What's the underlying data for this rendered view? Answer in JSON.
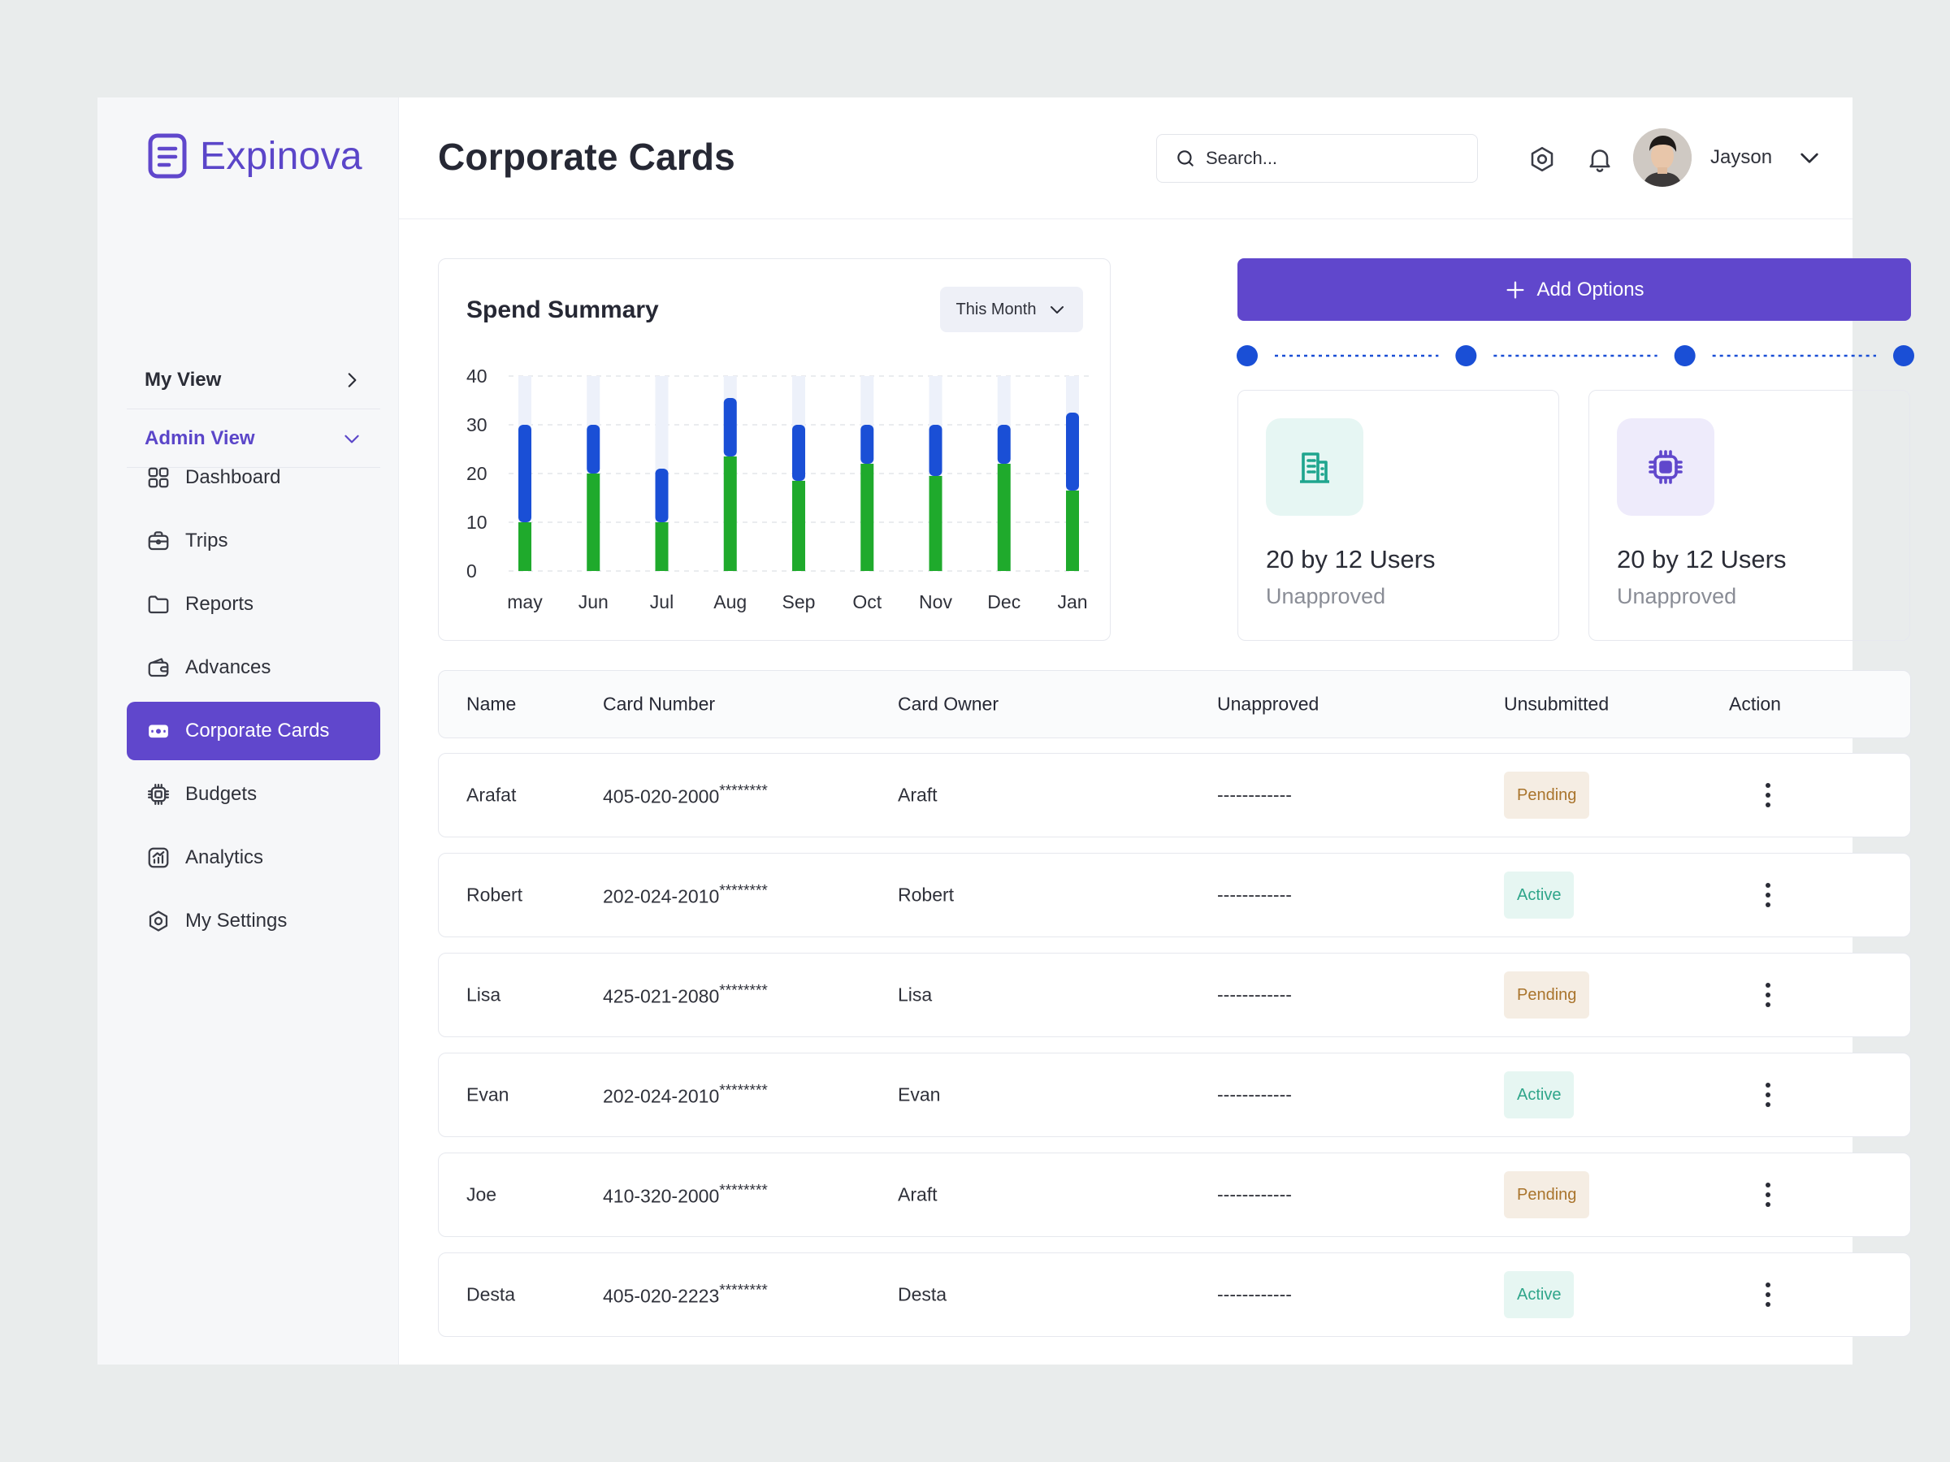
{
  "brand": {
    "name": "Expinova"
  },
  "sidebar": {
    "my_view": "My View",
    "admin_view": "Admin View",
    "items": [
      {
        "label": "Dashboard",
        "icon": "grid-icon"
      },
      {
        "label": "Trips",
        "icon": "briefcase-icon"
      },
      {
        "label": "Reports",
        "icon": "folder-icon"
      },
      {
        "label": "Advances",
        "icon": "wallet-icon"
      },
      {
        "label": "Corporate Cards",
        "icon": "card-icon"
      },
      {
        "label": "Budgets",
        "icon": "chip-icon"
      },
      {
        "label": "Analytics",
        "icon": "analytics-icon"
      },
      {
        "label": "My Settings",
        "icon": "settings-icon"
      }
    ]
  },
  "header": {
    "title": "Corporate Cards",
    "search_placeholder": "Search...",
    "user_name": "Jayson"
  },
  "spend": {
    "title": "Spend Summary",
    "period": "This Month"
  },
  "chart_data": {
    "type": "bar",
    "stacked": true,
    "categories": [
      "may",
      "Jun",
      "Jul",
      "Aug",
      "Sep",
      "Oct",
      "Nov",
      "Dec",
      "Jan"
    ],
    "series": [
      {
        "values": [
          10,
          20,
          10,
          23.5,
          18.5,
          22,
          19.5,
          22,
          16.5
        ],
        "color": "#1faa2c"
      },
      {
        "values": [
          20,
          10,
          11,
          12,
          11.5,
          8,
          10.5,
          8,
          16
        ],
        "color": "#1a4fd6"
      }
    ],
    "track_color": "#edf1fa",
    "ylim": [
      0,
      40
    ],
    "yticks": [
      0,
      10,
      20,
      30,
      40
    ],
    "grid": true
  },
  "actions": {
    "add_label": "Add Options",
    "steps": 4
  },
  "stats": [
    {
      "value": "20 by 12 Users",
      "label": "Unapproved",
      "icon": "building-icon",
      "bg": "#e6f6f3",
      "fg": "#1fa58e"
    },
    {
      "value": "20 by 12 Users",
      "label": "Unapproved",
      "icon": "chip-icon",
      "bg": "#eeebfb",
      "fg": "#6047cc"
    }
  ],
  "table": {
    "columns": [
      "Name",
      "Card Number",
      "Card Owner",
      "Unapproved",
      "Unsubmitted",
      "Action"
    ],
    "rows": [
      {
        "name": "Arafat",
        "card": "405-020-2000",
        "mask": "********",
        "owner": "Araft",
        "unapproved": "------------",
        "status": "Pending",
        "status_type": "pending"
      },
      {
        "name": "Robert",
        "card": "202-024-2010",
        "mask": "********",
        "owner": "Robert",
        "unapproved": "------------",
        "status": "Active",
        "status_type": "active"
      },
      {
        "name": "Lisa",
        "card": "425-021-2080",
        "mask": "********",
        "owner": "Lisa",
        "unapproved": "------------",
        "status": "Pending",
        "status_type": "pending"
      },
      {
        "name": "Evan",
        "card": "202-024-2010",
        "mask": "********",
        "owner": "Evan",
        "unapproved": "------------",
        "status": "Active",
        "status_type": "active"
      },
      {
        "name": "Joe",
        "card": "410-320-2000",
        "mask": "********",
        "owner": "Araft",
        "unapproved": "------------",
        "status": "Pending",
        "status_type": "pending"
      },
      {
        "name": "Desta",
        "card": "405-020-2223",
        "mask": "********",
        "owner": "Desta",
        "unapproved": "------------",
        "status": "Active",
        "status_type": "active"
      }
    ]
  }
}
